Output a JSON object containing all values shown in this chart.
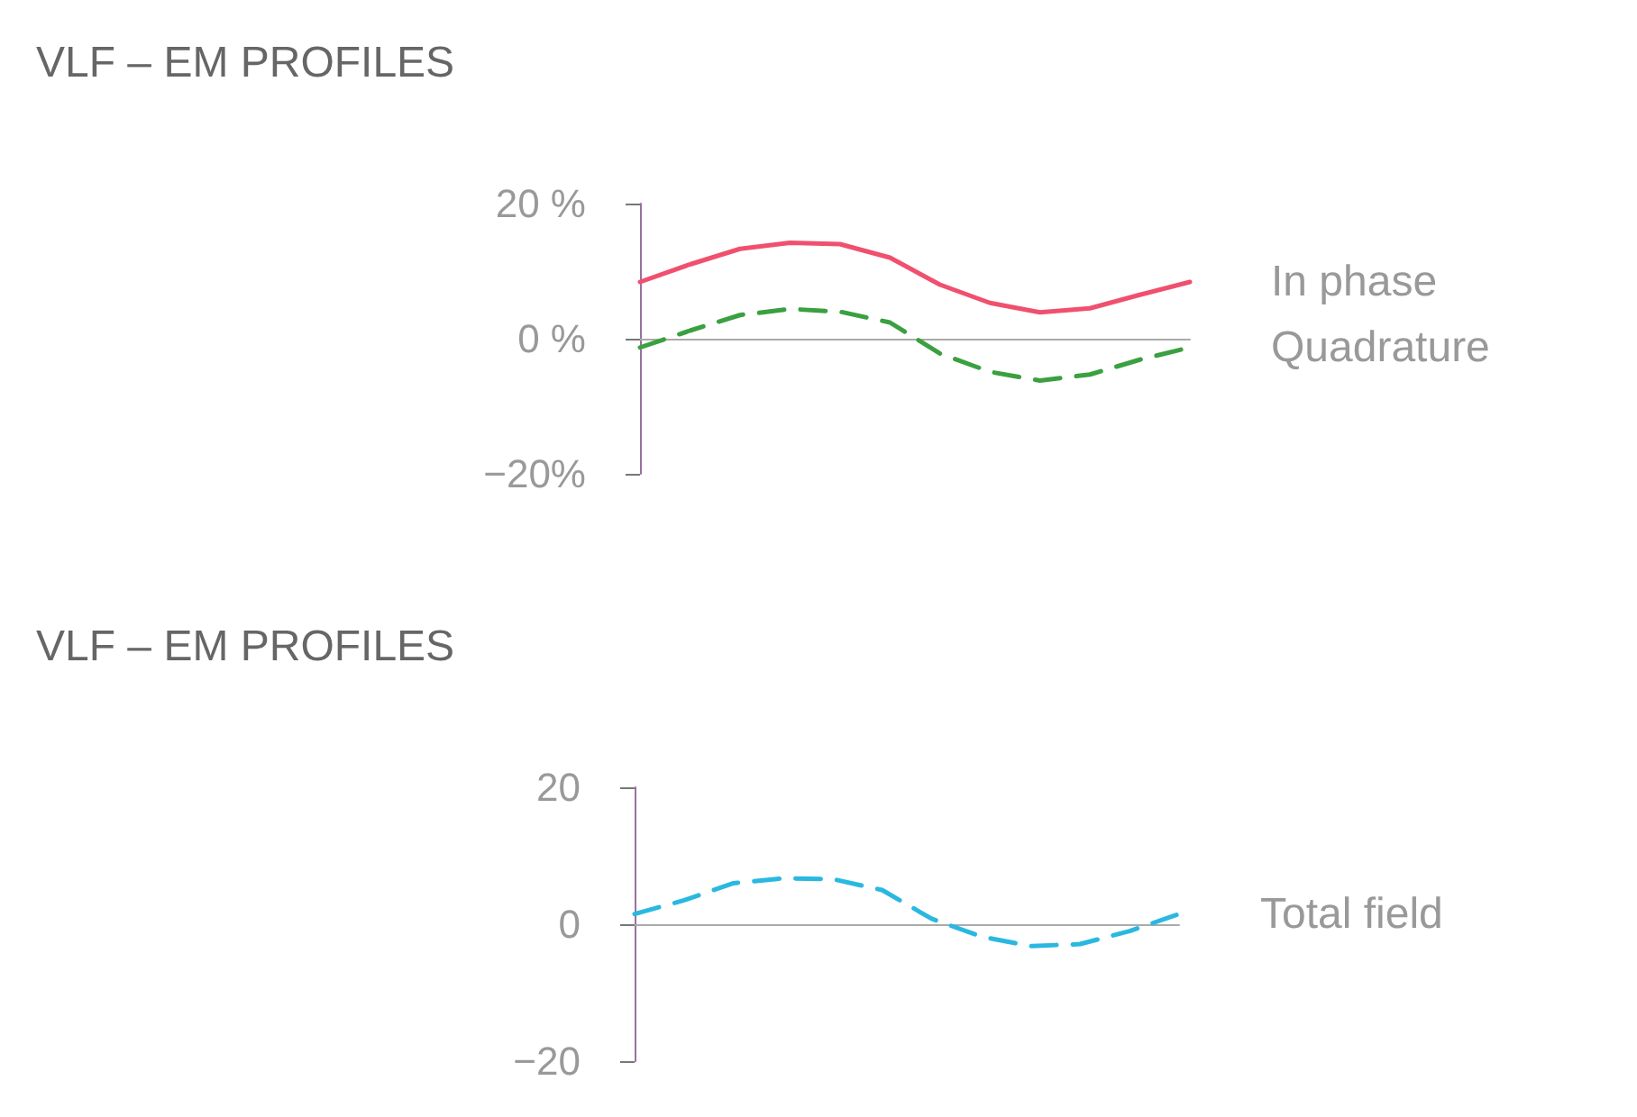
{
  "chart_data": [
    {
      "type": "line",
      "title": "VLF – EM PROFILES",
      "categories": [
        null,
        null,
        null,
        null,
        null,
        null,
        null,
        null,
        null,
        null,
        null,
        null
      ],
      "ylim": [
        -20,
        20
      ],
      "yticks": [
        {
          "value": -20,
          "label": "−20%"
        },
        {
          "value": 0,
          "label": "0 %"
        },
        {
          "value": 20,
          "label": "20 %"
        }
      ],
      "tick_labels": "y",
      "marker": "none",
      "series": [
        {
          "name": "In phase",
          "color": "#f0506e",
          "line_style": "solid",
          "values": [
            8.4,
            11,
            13.3,
            14.2,
            14,
            12,
            8,
            5.3,
            3.9,
            4.5,
            6.5,
            8.4
          ]
        },
        {
          "name": "Quadrature",
          "color": "#3aa040",
          "line_style": "dashed",
          "values": [
            -1.3,
            1.2,
            3.5,
            4.4,
            4,
            2.4,
            -2.2,
            -4.9,
            -6.2,
            -5.3,
            -3.1,
            -1.3
          ]
        }
      ]
    },
    {
      "type": "line",
      "title": "VLF – EM PROFILES",
      "categories": [
        null,
        null,
        null,
        null,
        null,
        null,
        null,
        null,
        null,
        null,
        null,
        null
      ],
      "ylim": [
        -20,
        20
      ],
      "yticks": [
        {
          "value": -20,
          "label": "−20"
        },
        0,
        20
      ],
      "tick_labels": "y",
      "marker": "none",
      "series": [
        {
          "name": "Total field",
          "color": "#2ab8e0",
          "line_style": "dashed",
          "values": [
            1.5,
            3.5,
            6,
            6.7,
            6.6,
            5,
            0.8,
            -1.8,
            -3.2,
            -2.9,
            -1,
            1.5
          ]
        }
      ]
    }
  ]
}
